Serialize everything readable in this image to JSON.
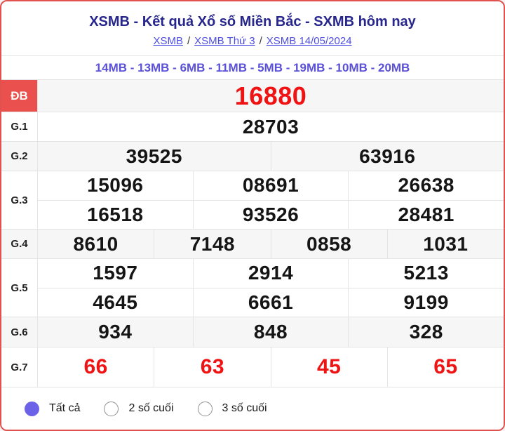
{
  "header": {
    "title": "XSMB - Kết quả Xổ số Miền Bắc - SXMB hôm nay",
    "separator": "/",
    "breadcrumbs": [
      {
        "label": "XSMB"
      },
      {
        "label": "XSMB Thứ 3"
      },
      {
        "label": "XSMB 14/05/2024"
      }
    ],
    "stations_line": "14MB - 13MB - 6MB - 11MB - 5MB - 19MB - 10MB - 20MB"
  },
  "results": {
    "rows": [
      {
        "label": "ĐB",
        "special": true,
        "shade": "gray",
        "tone": "red",
        "size": "xl",
        "cells": [
          [
            "16880"
          ]
        ]
      },
      {
        "label": "G.1",
        "special": false,
        "shade": "white",
        "tone": "black",
        "cells": [
          [
            "28703"
          ]
        ]
      },
      {
        "label": "G.2",
        "special": false,
        "shade": "gray",
        "tone": "black",
        "cells": [
          [
            "39525",
            "63916"
          ]
        ]
      },
      {
        "label": "G.3",
        "special": false,
        "shade": "white",
        "tone": "black",
        "cells": [
          [
            "15096",
            "08691",
            "26638"
          ],
          [
            "16518",
            "93526",
            "28481"
          ]
        ]
      },
      {
        "label": "G.4",
        "special": false,
        "shade": "gray",
        "tone": "black",
        "cells": [
          [
            "8610",
            "7148",
            "0858",
            "1031"
          ]
        ]
      },
      {
        "label": "G.5",
        "special": false,
        "shade": "white",
        "tone": "black",
        "cells": [
          [
            "1597",
            "2914",
            "5213"
          ],
          [
            "4645",
            "6661",
            "9199"
          ]
        ]
      },
      {
        "label": "G.6",
        "special": false,
        "shade": "gray",
        "tone": "black",
        "cells": [
          [
            "934",
            "848",
            "328"
          ]
        ]
      },
      {
        "label": "G.7",
        "special": false,
        "shade": "white",
        "tone": "red",
        "size": "lg",
        "cells": [
          [
            "66",
            "63",
            "45",
            "65"
          ]
        ]
      }
    ]
  },
  "filters": {
    "options": [
      {
        "label": "Tất cả",
        "selected": true
      },
      {
        "label": "2 số cuối",
        "selected": false
      },
      {
        "label": "3 số cuối",
        "selected": false
      }
    ]
  },
  "colors": {
    "card_border": "#e0514f",
    "special_label_bg": "#e9504e",
    "special_number_red": "#ef1313",
    "title_navy": "#26268c",
    "link_purple": "#4d4de0",
    "stations_purple": "#5b51d8",
    "radio_selected_purple": "#6b62e8",
    "row_gray": "#f6f6f6",
    "grid_line": "#e4e4e4"
  }
}
